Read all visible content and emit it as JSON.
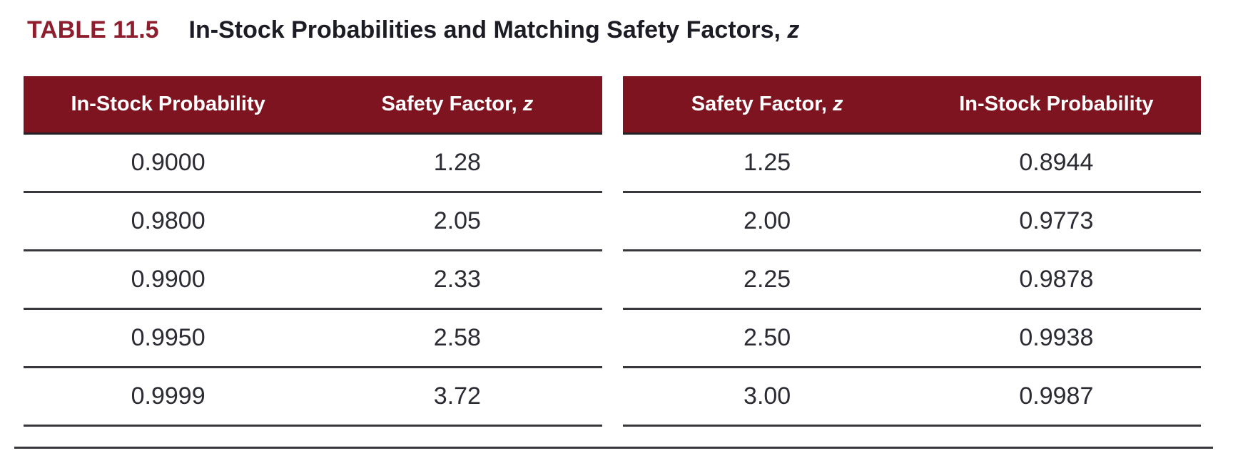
{
  "page": {
    "title_label": "TABLE 11.5",
    "title_text": "In-Stock Probabilities and Matching Safety Factors,",
    "title_italic": "z"
  },
  "colors": {
    "header_bg": "#7E1420",
    "title_label": "#8E1E2D",
    "text_dark": "#2A2B33",
    "rule": "#38383C",
    "header_text": "#FFFFFF"
  },
  "tables": [
    {
      "id": "left",
      "headers": [
        {
          "text": "In-Stock Probability",
          "italic": ""
        },
        {
          "text": "Safety Factor,",
          "italic": "z"
        }
      ],
      "rows": [
        [
          "0.9000",
          "1.28"
        ],
        [
          "0.9800",
          "2.05"
        ],
        [
          "0.9900",
          "2.33"
        ],
        [
          "0.9950",
          "2.58"
        ],
        [
          "0.9999",
          "3.72"
        ]
      ]
    },
    {
      "id": "right",
      "headers": [
        {
          "text": "Safety Factor,",
          "italic": "z"
        },
        {
          "text": "In-Stock Probability",
          "italic": ""
        }
      ],
      "rows": [
        [
          "1.25",
          "0.8944"
        ],
        [
          "2.00",
          "0.9773"
        ],
        [
          "2.25",
          "0.9878"
        ],
        [
          "2.50",
          "0.9938"
        ],
        [
          "3.00",
          "0.9987"
        ]
      ]
    }
  ]
}
